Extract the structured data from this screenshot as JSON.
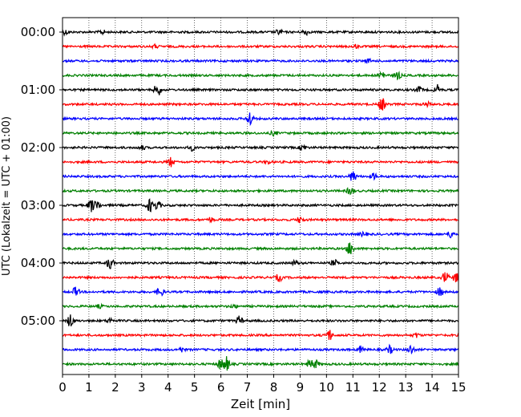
{
  "chart_data": {
    "type": "line",
    "title": "",
    "xlabel": "Zeit  [min]",
    "ylabel": "UTC (Lokalzeit = UTC + 01:00)",
    "xlim": [
      0,
      15
    ],
    "xticks": [
      0,
      1,
      2,
      3,
      4,
      5,
      6,
      7,
      8,
      9,
      10,
      11,
      12,
      13,
      14,
      15
    ],
    "ytick_labels": [
      "00:00",
      "01:00",
      "02:00",
      "03:00",
      "04:00",
      "05:00"
    ],
    "grid": "vertical dotted at each minute",
    "trace_interval_min": 15,
    "colors_cycle": [
      "#000000",
      "#ff0000",
      "#0000ff",
      "#008000"
    ],
    "series": [
      {
        "start": "00:00",
        "color": "#000000",
        "events": [
          [
            0.1,
            0.3
          ],
          [
            1.5,
            0.3
          ],
          [
            8.2,
            0.35
          ],
          [
            9.2,
            0.4
          ]
        ]
      },
      {
        "start": "00:15",
        "color": "#ff0000",
        "events": [
          [
            3.5,
            0.2
          ],
          [
            11.1,
            0.2
          ]
        ]
      },
      {
        "start": "00:30",
        "color": "#0000ff",
        "events": [
          [
            11.6,
            0.2
          ]
        ]
      },
      {
        "start": "00:45",
        "color": "#008000",
        "events": [
          [
            12.1,
            0.6
          ],
          [
            12.7,
            0.5
          ]
        ]
      },
      {
        "start": "01:00",
        "color": "#000000",
        "events": [
          [
            3.6,
            0.9
          ],
          [
            13.5,
            0.4
          ],
          [
            14.2,
            0.6
          ]
        ]
      },
      {
        "start": "01:15",
        "color": "#ff0000",
        "events": [
          [
            12.1,
            0.9
          ],
          [
            13.8,
            0.3
          ]
        ]
      },
      {
        "start": "01:30",
        "color": "#0000ff",
        "events": [
          [
            7.1,
            1.0
          ]
        ]
      },
      {
        "start": "01:45",
        "color": "#008000",
        "events": [
          [
            8.0,
            0.3
          ]
        ]
      },
      {
        "start": "02:00",
        "color": "#000000",
        "events": [
          [
            3.0,
            0.3
          ],
          [
            4.9,
            0.35
          ],
          [
            9.1,
            0.4
          ]
        ]
      },
      {
        "start": "02:15",
        "color": "#ff0000",
        "events": [
          [
            4.1,
            0.6
          ],
          [
            7.8,
            0.2
          ]
        ]
      },
      {
        "start": "02:30",
        "color": "#0000ff",
        "events": [
          [
            11.0,
            0.8
          ],
          [
            11.8,
            0.4
          ]
        ]
      },
      {
        "start": "02:45",
        "color": "#008000",
        "events": [
          [
            10.9,
            0.5
          ]
        ]
      },
      {
        "start": "03:00",
        "color": "#000000",
        "events": [
          [
            1.1,
            0.9
          ],
          [
            1.3,
            0.7
          ],
          [
            3.3,
            0.9
          ],
          [
            3.6,
            0.6
          ]
        ]
      },
      {
        "start": "03:15",
        "color": "#ff0000",
        "events": [
          [
            5.6,
            0.3
          ],
          [
            9.0,
            0.4
          ]
        ]
      },
      {
        "start": "03:30",
        "color": "#0000ff",
        "events": [
          [
            11.4,
            0.3
          ],
          [
            14.7,
            0.4
          ]
        ]
      },
      {
        "start": "03:45",
        "color": "#008000",
        "events": [
          [
            10.9,
            1.0
          ]
        ]
      },
      {
        "start": "04:00",
        "color": "#000000",
        "events": [
          [
            1.8,
            0.8
          ],
          [
            8.8,
            0.3
          ],
          [
            10.3,
            0.4
          ]
        ]
      },
      {
        "start": "04:15",
        "color": "#ff0000",
        "events": [
          [
            8.2,
            0.5
          ],
          [
            14.5,
            0.8
          ],
          [
            14.9,
            0.6
          ]
        ]
      },
      {
        "start": "04:30",
        "color": "#0000ff",
        "events": [
          [
            0.5,
            0.6
          ],
          [
            3.7,
            0.7
          ],
          [
            14.3,
            0.6
          ]
        ]
      },
      {
        "start": "04:45",
        "color": "#008000",
        "events": [
          [
            1.4,
            0.2
          ],
          [
            6.5,
            0.2
          ]
        ]
      },
      {
        "start": "05:00",
        "color": "#000000",
        "events": [
          [
            0.3,
            0.9
          ],
          [
            1.8,
            0.3
          ],
          [
            6.7,
            0.6
          ]
        ]
      },
      {
        "start": "05:15",
        "color": "#ff0000",
        "events": [
          [
            10.1,
            0.8
          ],
          [
            13.4,
            0.3
          ]
        ]
      },
      {
        "start": "05:30",
        "color": "#0000ff",
        "events": [
          [
            4.5,
            0.3
          ],
          [
            11.3,
            0.4
          ],
          [
            12.4,
            0.5
          ],
          [
            13.2,
            0.6
          ]
        ]
      },
      {
        "start": "05:45",
        "color": "#008000",
        "events": [
          [
            6.0,
            0.8
          ],
          [
            6.2,
            1.0
          ],
          [
            9.4,
            0.7
          ],
          [
            9.6,
            0.5
          ]
        ]
      }
    ]
  }
}
